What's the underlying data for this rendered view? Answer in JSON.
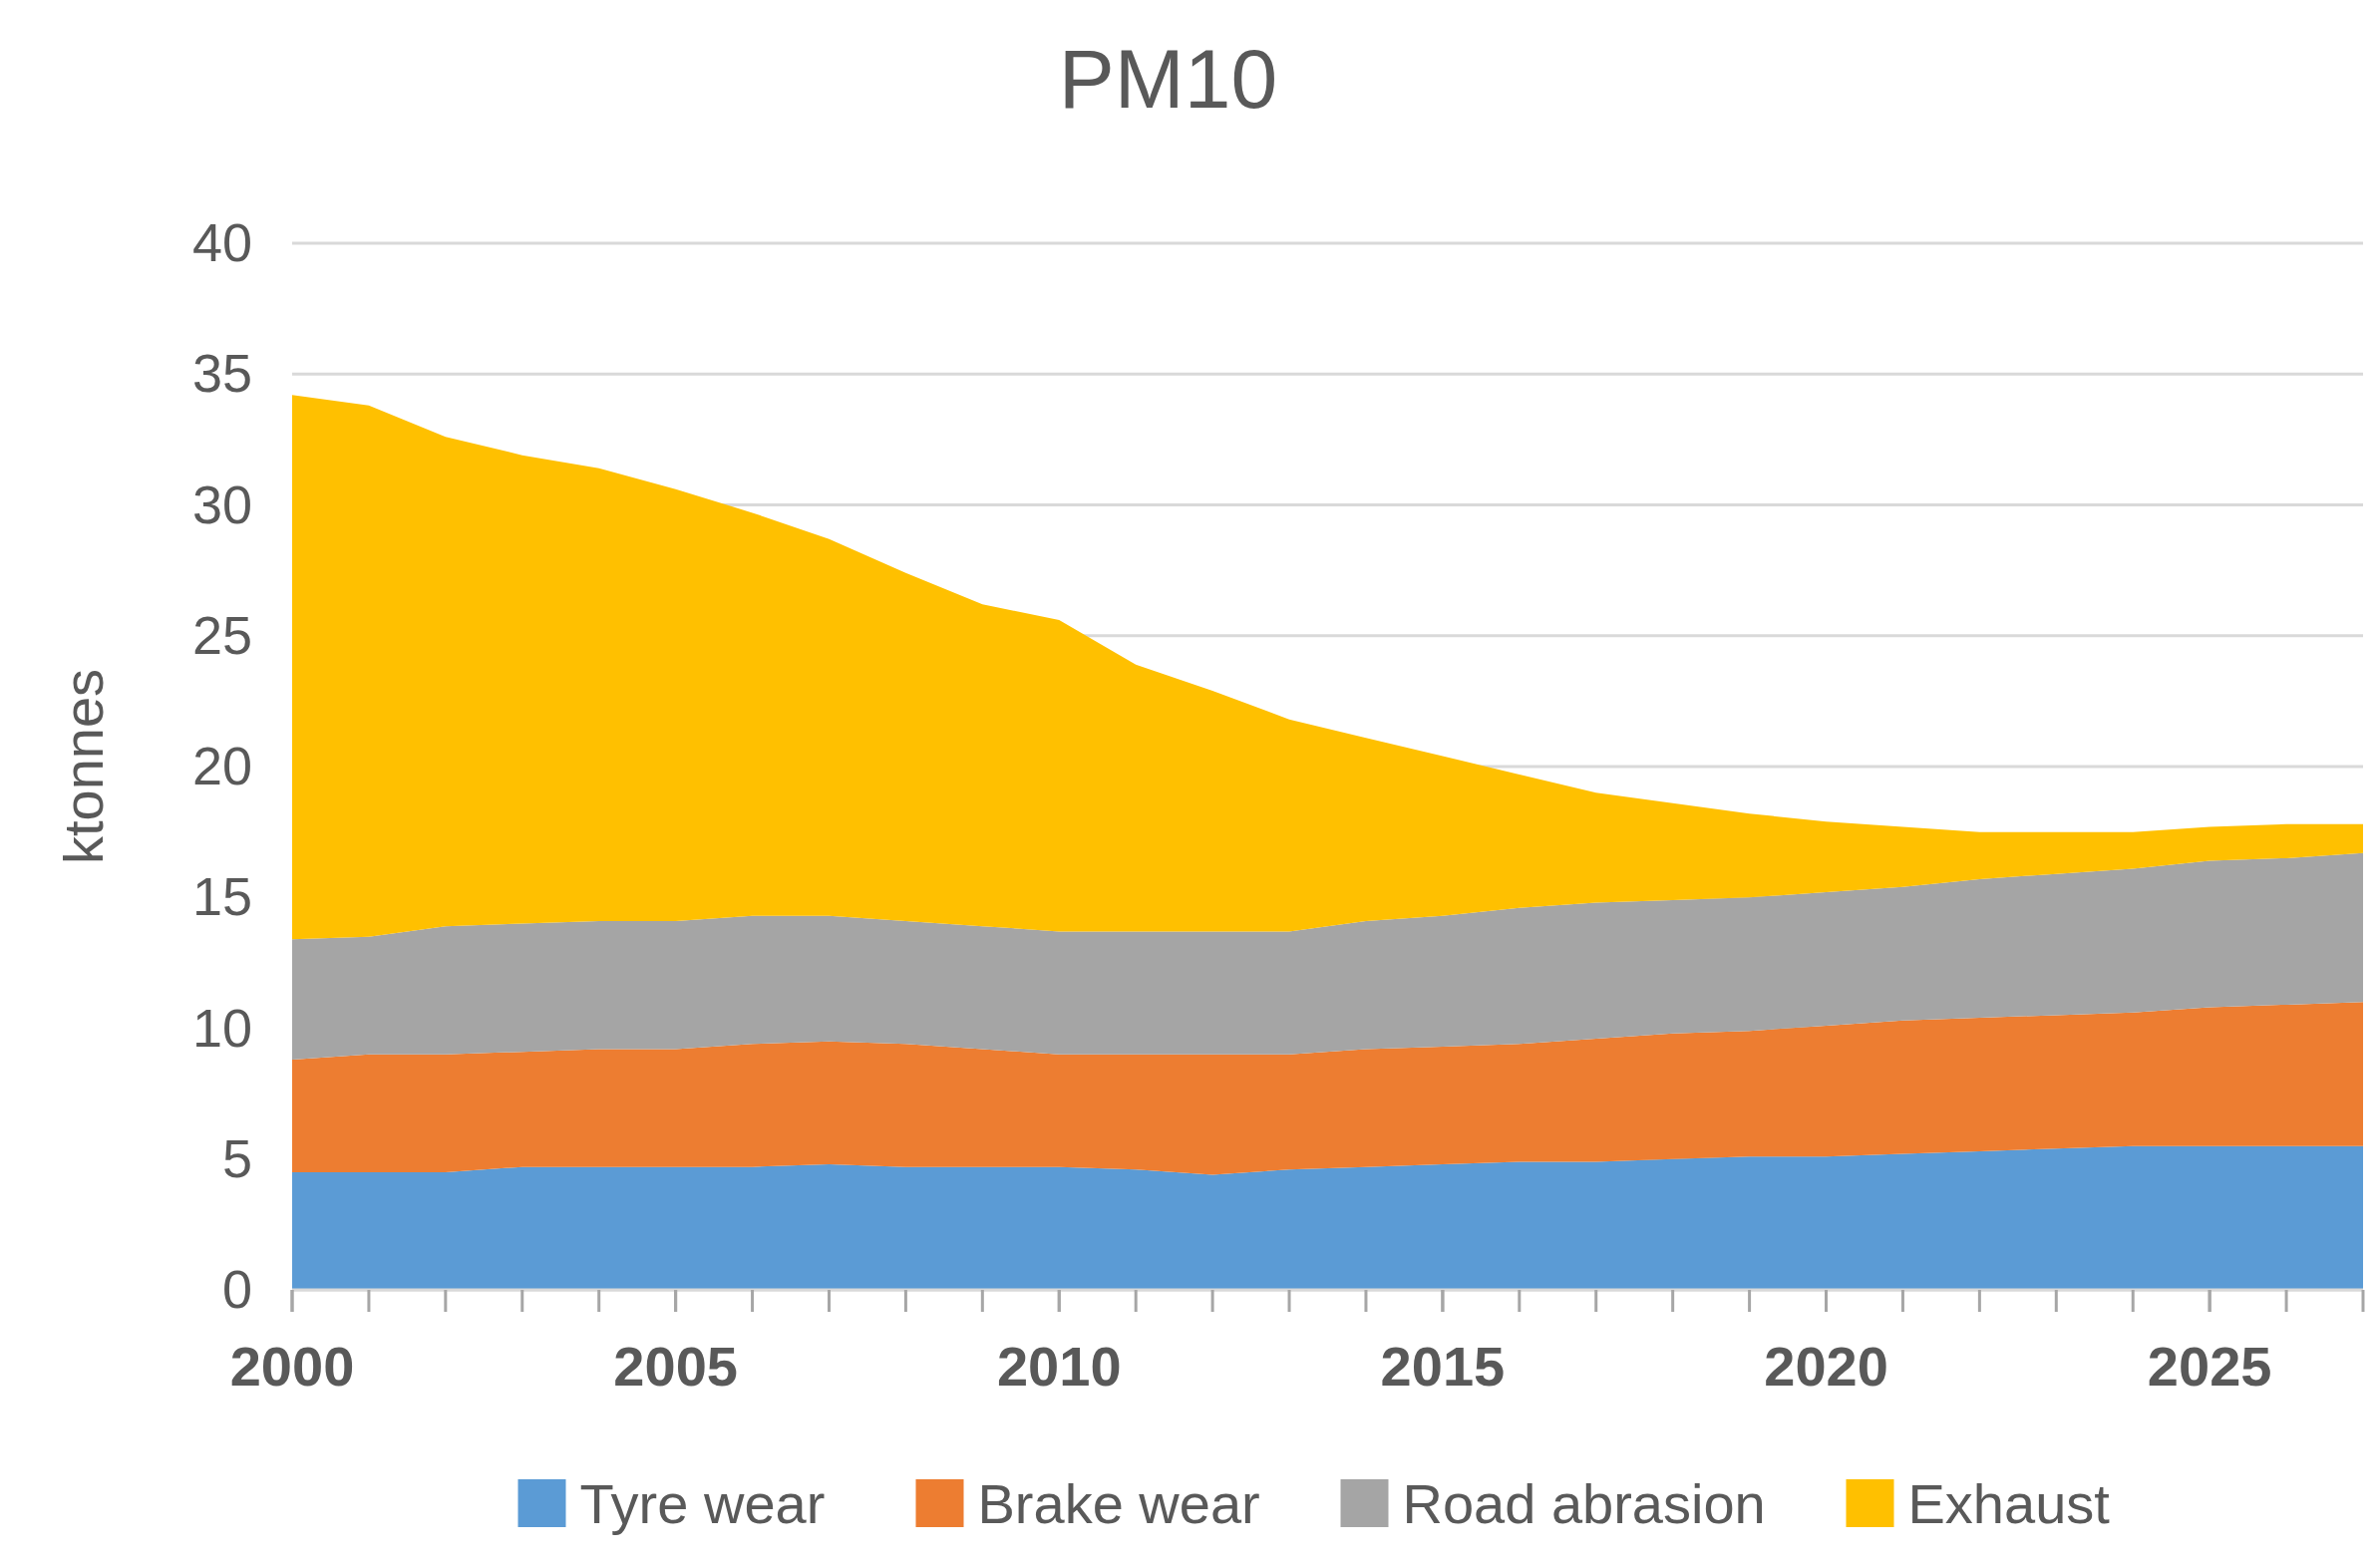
{
  "chart_data": {
    "type": "area",
    "stacked": true,
    "title": "PM10",
    "ylabel": "ktonnes",
    "x": [
      2000,
      2001,
      2002,
      2003,
      2004,
      2005,
      2006,
      2007,
      2008,
      2009,
      2010,
      2011,
      2012,
      2013,
      2014,
      2015,
      2016,
      2017,
      2018,
      2019,
      2020,
      2021,
      2022,
      2023,
      2024,
      2025,
      2026,
      2027
    ],
    "series": [
      {
        "name": "Tyre wear",
        "color": "#5b9bd5",
        "values": [
          4.5,
          4.5,
          4.5,
          4.7,
          4.7,
          4.7,
          4.7,
          4.8,
          4.7,
          4.7,
          4.7,
          4.6,
          4.4,
          4.6,
          4.7,
          4.8,
          4.9,
          4.9,
          5.0,
          5.1,
          5.1,
          5.2,
          5.3,
          5.4,
          5.5,
          5.5,
          5.5,
          5.5
        ]
      },
      {
        "name": "Brake wear",
        "color": "#ed7d31",
        "values": [
          4.3,
          4.5,
          4.5,
          4.4,
          4.5,
          4.5,
          4.7,
          4.7,
          4.7,
          4.5,
          4.3,
          4.4,
          4.6,
          4.4,
          4.5,
          4.5,
          4.5,
          4.7,
          4.8,
          4.8,
          5.0,
          5.1,
          5.1,
          5.1,
          5.1,
          5.3,
          5.4,
          5.5
        ]
      },
      {
        "name": "Road abrasion",
        "color": "#a5a5a5",
        "values": [
          4.6,
          4.5,
          4.9,
          4.9,
          4.9,
          4.9,
          4.9,
          4.8,
          4.7,
          4.7,
          4.7,
          4.7,
          4.7,
          4.7,
          4.9,
          5.0,
          5.2,
          5.2,
          5.1,
          5.1,
          5.1,
          5.1,
          5.3,
          5.4,
          5.5,
          5.6,
          5.6,
          5.7
        ]
      },
      {
        "name": "Exhaust",
        "color": "#ffc000",
        "values": [
          20.8,
          20.3,
          18.7,
          17.9,
          17.3,
          16.5,
          15.4,
          14.4,
          13.3,
          12.3,
          11.9,
          10.2,
          9.2,
          8.1,
          7.0,
          6.1,
          5.1,
          4.2,
          3.7,
          3.2,
          2.7,
          2.3,
          1.8,
          1.6,
          1.4,
          1.3,
          1.3,
          1.1
        ]
      }
    ],
    "xlim": [
      2000,
      2027
    ],
    "xticks": [
      2000,
      2005,
      2010,
      2015,
      2020,
      2025
    ],
    "ylim": [
      0,
      40
    ],
    "yticks": [
      0,
      5,
      10,
      15,
      20,
      25,
      30,
      35,
      40
    ],
    "grid": "y",
    "legend": "bottom"
  }
}
